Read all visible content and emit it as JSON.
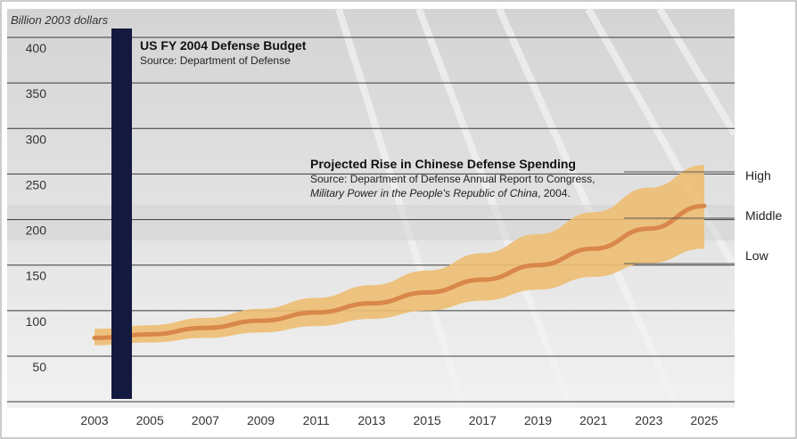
{
  "chart_data": {
    "type": "area",
    "ylabel": "Billion 2003 dollars",
    "ylim": [
      0,
      420
    ],
    "yticks": [
      50,
      100,
      150,
      200,
      250,
      300,
      350,
      400
    ],
    "xlim": [
      2002.8,
      2026
    ],
    "xticks": [
      2003,
      2005,
      2007,
      2009,
      2011,
      2013,
      2015,
      2017,
      2019,
      2021,
      2023,
      2025
    ],
    "grid": "horizontal",
    "bar": {
      "x": 2004,
      "value": 400,
      "color": "#141a3f",
      "title": "US FY 2004 Defense Budget",
      "source": "Source: Department of Defense"
    },
    "projection": {
      "title": "Projected Rise in Chinese Defense Spending",
      "source_line1": "Source: Department of Defense Annual Report to Congress,",
      "source_line2_italic": "Military Power in the People's Republic of China",
      "source_line2_tail": ", 2004.",
      "band_color": "#edbe72",
      "line_color": "#d9874a",
      "series": [
        {
          "name": "High",
          "x": [
            2003,
            2005,
            2007,
            2009,
            2011,
            2013,
            2015,
            2017,
            2019,
            2021,
            2023,
            2025
          ],
          "values": [
            80,
            84,
            92,
            102,
            114,
            128,
            144,
            163,
            184,
            208,
            235,
            260
          ]
        },
        {
          "name": "Middle",
          "x": [
            2003,
            2005,
            2007,
            2009,
            2011,
            2013,
            2015,
            2017,
            2019,
            2021,
            2023,
            2025
          ],
          "values": [
            70,
            74,
            81,
            89,
            98,
            108,
            120,
            134,
            150,
            168,
            190,
            215
          ]
        },
        {
          "name": "Low",
          "x": [
            2003,
            2005,
            2007,
            2009,
            2011,
            2013,
            2015,
            2017,
            2019,
            2021,
            2023,
            2025
          ],
          "values": [
            62,
            65,
            70,
            76,
            83,
            91,
            100,
            111,
            123,
            137,
            152,
            168
          ]
        }
      ]
    }
  }
}
